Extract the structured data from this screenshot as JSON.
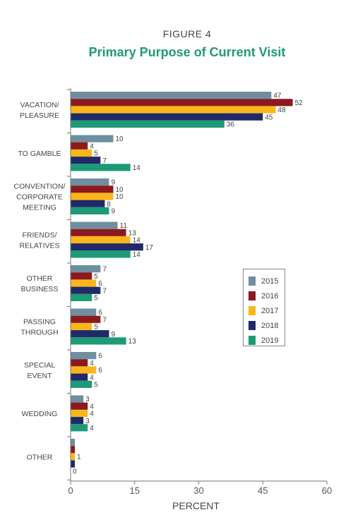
{
  "figure_label": "FIGURE 4",
  "title": "Primary Purpose of Current Visit",
  "chart_data": {
    "type": "bar",
    "orientation": "horizontal",
    "categories": [
      [
        "VACATION/",
        "PLEASURE"
      ],
      [
        "TO GAMBLE"
      ],
      [
        "CONVENTION/",
        "CORPORATE",
        "MEETING"
      ],
      [
        "FRIENDS/",
        "RELATIVES"
      ],
      [
        "OTHER",
        "BUSINESS"
      ],
      [
        "PASSING",
        "THROUGH"
      ],
      [
        "SPECIAL",
        "EVENT"
      ],
      [
        "WEDDING"
      ],
      [
        "OTHER"
      ]
    ],
    "series": [
      {
        "name": "2015",
        "color": "#6f8fa0",
        "values": [
          47,
          10,
          9,
          11,
          7,
          6,
          6,
          3,
          1
        ],
        "labels": [
          "47",
          "10",
          "9",
          "11",
          "7",
          "6",
          "6",
          "3",
          ""
        ]
      },
      {
        "name": "2016",
        "color": "#8b1a1f",
        "values": [
          52,
          4,
          10,
          13,
          5,
          7,
          4,
          4,
          1
        ],
        "labels": [
          "52",
          "4",
          "10",
          "13",
          "5",
          "7",
          "4",
          "4",
          ""
        ]
      },
      {
        "name": "2017",
        "color": "#fbb61a",
        "values": [
          48,
          5,
          10,
          14,
          6,
          5,
          6,
          4,
          1
        ],
        "labels": [
          "48",
          "5",
          "10",
          "14",
          "6",
          "5",
          "6",
          "4",
          "1"
        ]
      },
      {
        "name": "2018",
        "color": "#1f2a6b",
        "values": [
          45,
          7,
          8,
          17,
          7,
          9,
          4,
          3,
          1
        ],
        "labels": [
          "45",
          "7",
          "8",
          "17",
          "7",
          "9",
          "4",
          "3",
          ""
        ]
      },
      {
        "name": "2019",
        "color": "#1d9a76",
        "values": [
          36,
          14,
          9,
          14,
          5,
          13,
          5,
          4,
          0
        ],
        "labels": [
          "36",
          "14",
          "9",
          "14",
          "5",
          "13",
          "5",
          "4",
          "0"
        ]
      }
    ],
    "xlabel": "PERCENT",
    "xlim": [
      0,
      60
    ],
    "xticks": [
      0,
      15,
      30,
      45,
      60
    ],
    "grid": false,
    "legend_position": "right"
  }
}
